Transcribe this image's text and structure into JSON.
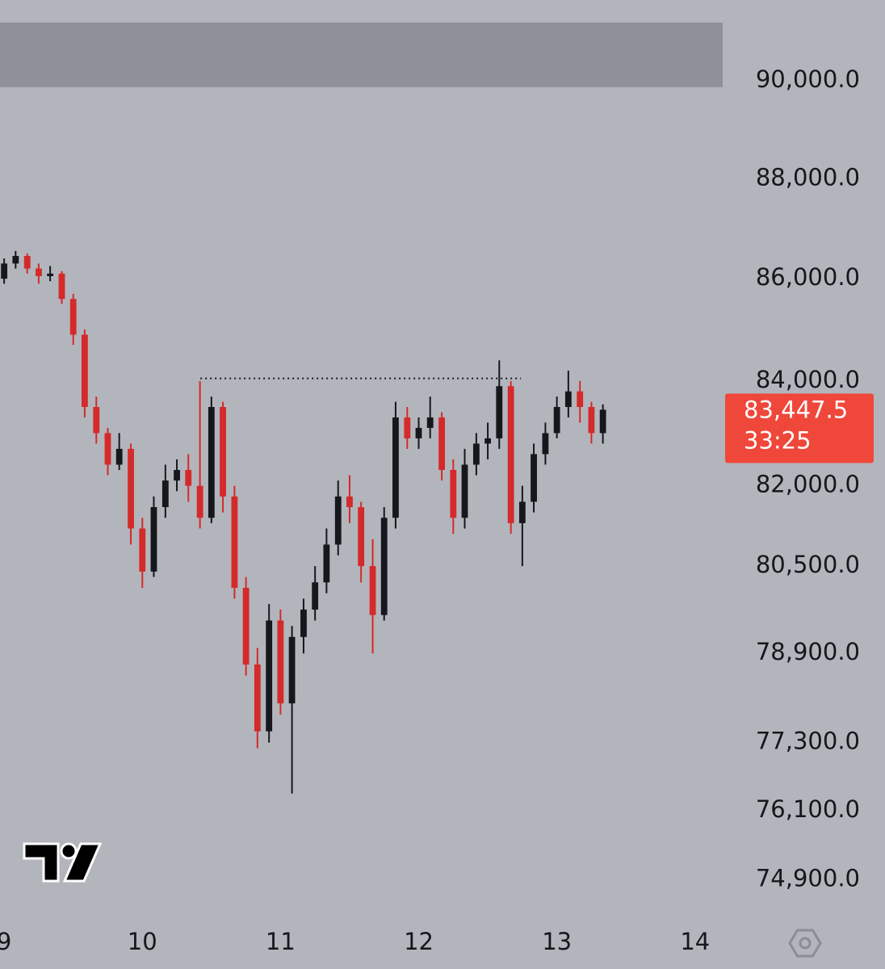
{
  "chart_data": {
    "type": "candlestick",
    "log_scale": true,
    "up_color": "#16171c",
    "down_color": "#d42a2a",
    "xlim": [
      8.97,
      14.2
    ],
    "xticks": [
      9,
      10,
      11,
      12,
      13,
      14
    ],
    "ylim": [
      74270,
      91690
    ],
    "yticks": [
      {
        "value": 90000,
        "label": "90,000.0"
      },
      {
        "value": 88000,
        "label": "88,000.0"
      },
      {
        "value": 86000,
        "label": "86,000.0"
      },
      {
        "value": 84000,
        "label": "84,000.0"
      },
      {
        "value": 82000,
        "label": "82,000.0"
      },
      {
        "value": 80500,
        "label": "80,500.0"
      },
      {
        "value": 78900,
        "label": "78,900.0"
      },
      {
        "value": 77300,
        "label": "77,300.0"
      },
      {
        "value": 76100,
        "label": "76,100.0"
      },
      {
        "value": 74900,
        "label": "74,900.0"
      }
    ],
    "x": [
      9,
      9.083,
      9.167,
      9.25,
      9.333,
      9.417,
      9.5,
      9.583,
      9.667,
      9.75,
      9.833,
      9.917,
      10,
      10.083,
      10.167,
      10.25,
      10.333,
      10.417,
      10.5,
      10.583,
      10.667,
      10.75,
      10.833,
      10.917,
      11,
      11.083,
      11.167,
      11.25,
      11.333,
      11.417,
      11.5,
      11.583,
      11.667,
      11.75,
      11.833,
      11.917,
      12,
      12.083,
      12.167,
      12.25,
      12.333,
      12.417,
      12.5,
      12.583,
      12.667,
      12.75,
      12.833,
      12.917,
      13,
      13.083,
      13.167,
      13.25,
      13.333
    ],
    "open": [
      86000,
      86300,
      86450,
      86200,
      86050,
      86100,
      85600,
      84900,
      83500,
      83000,
      82400,
      82700,
      81200,
      80400,
      81600,
      82100,
      82300,
      82000,
      81400,
      83500,
      81800,
      80100,
      78700,
      77500,
      79500,
      78000,
      79200,
      79700,
      80200,
      80900,
      81800,
      81600,
      80500,
      79600,
      81400,
      83300,
      82900,
      83100,
      83300,
      82300,
      81400,
      82400,
      82800,
      82900,
      83900,
      81300,
      81700,
      82600,
      83000,
      83500,
      83800,
      83500,
      83000
    ],
    "high": [
      86400,
      86550,
      86500,
      86300,
      86250,
      86150,
      85700,
      85000,
      83700,
      83100,
      83000,
      82800,
      81400,
      81800,
      82400,
      82500,
      82600,
      84000,
      83700,
      83600,
      82000,
      80300,
      79000,
      79800,
      79700,
      79400,
      79900,
      80500,
      81200,
      82100,
      82200,
      81700,
      81000,
      81600,
      83600,
      83500,
      83300,
      83700,
      83400,
      82500,
      82700,
      83000,
      83200,
      84400,
      84000,
      82000,
      82800,
      83200,
      83700,
      84200,
      84000,
      83600,
      83550
    ],
    "low": [
      85900,
      86200,
      86100,
      85900,
      85950,
      85500,
      84700,
      83300,
      82800,
      82200,
      82300,
      80900,
      80100,
      80300,
      81400,
      81900,
      81700,
      81200,
      81300,
      81500,
      79900,
      78500,
      77200,
      77300,
      77800,
      76400,
      78900,
      79500,
      80000,
      80700,
      81300,
      80200,
      78900,
      79500,
      81200,
      82700,
      82700,
      82900,
      82100,
      81100,
      81200,
      82200,
      82500,
      82700,
      81100,
      80500,
      81500,
      82400,
      82900,
      83300,
      83200,
      82800,
      82800
    ],
    "close": [
      86300,
      86450,
      86200,
      86050,
      86100,
      85600,
      84900,
      83500,
      83000,
      82400,
      82700,
      81200,
      80400,
      81600,
      82100,
      82300,
      82000,
      81400,
      83500,
      81800,
      80100,
      78700,
      77500,
      79500,
      78000,
      79200,
      79700,
      80200,
      80900,
      81800,
      81600,
      80500,
      79600,
      81400,
      83300,
      82900,
      83100,
      83300,
      82300,
      81400,
      82400,
      82800,
      82900,
      83900,
      81300,
      81700,
      82600,
      83000,
      83500,
      83800,
      83500,
      83000,
      83447.5
    ],
    "reference_line": {
      "y": 84050,
      "xrange": [
        10.42,
        12.74
      ]
    },
    "last_price": {
      "value": 83447.5,
      "label": "83,447.5",
      "countdown": "33:25",
      "color": "#f0473b"
    }
  }
}
